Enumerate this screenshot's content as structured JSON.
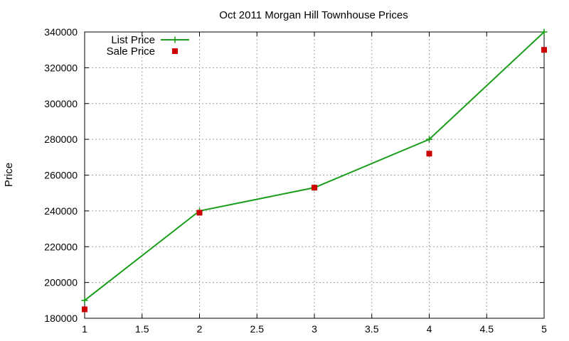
{
  "chart_data": {
    "type": "line",
    "title": "Oct 2011 Morgan Hill Townhouse Prices",
    "xlabel": "",
    "ylabel": "Price",
    "xlim": [
      1,
      5
    ],
    "ylim": [
      180000,
      340000
    ],
    "xticks": [
      1,
      1.5,
      2,
      2.5,
      3,
      3.5,
      4,
      4.5,
      5
    ],
    "xtick_labels": [
      "1",
      "1.5",
      "2",
      "2.5",
      "3",
      "3.5",
      "4",
      "4.5",
      "5"
    ],
    "yticks": [
      180000,
      200000,
      220000,
      240000,
      260000,
      280000,
      300000,
      320000,
      340000
    ],
    "ytick_labels": [
      "180000",
      "200000",
      "220000",
      "240000",
      "260000",
      "280000",
      "300000",
      "320000",
      "340000"
    ],
    "grid": true,
    "legend_position": "top-left",
    "series": [
      {
        "name": "List Price",
        "style": "lines+points",
        "marker": "plus",
        "color": "#1a9e1a",
        "x": [
          1,
          2,
          3,
          4,
          5
        ],
        "y": [
          190000,
          240000,
          253000,
          280000,
          340000
        ]
      },
      {
        "name": "Sale Price",
        "style": "points",
        "marker": "square",
        "color": "#cc0000",
        "x": [
          1,
          2,
          3,
          4,
          5
        ],
        "y": [
          185000,
          239000,
          253000,
          272000,
          330000
        ]
      }
    ]
  }
}
